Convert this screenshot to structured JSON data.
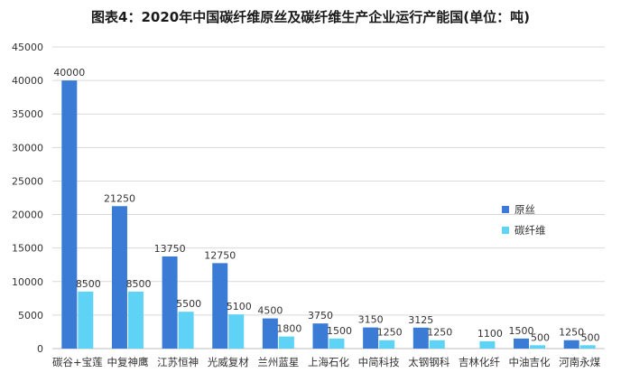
{
  "title": "图表4：2020年中国碳纤维原丝及碳纤维生产企业运行产能国(单位：吨)",
  "colors": {
    "precursor": "#3a7bd5",
    "fiber": "#5fd3f5",
    "grid": "#d9d9d9",
    "axis": "#bfbfbf"
  },
  "chart_data": {
    "type": "bar",
    "title": "图表4：2020年中国碳纤维原丝及碳纤维生产企业运行产能国(单位：吨)",
    "categories": [
      "碳谷+宝莲",
      "中复神鹰",
      "江苏恒神",
      "光威复材",
      "兰州蓝星",
      "上海石化",
      "中简科技",
      "太钢钢科",
      "吉林化纤",
      "中油吉化",
      "河南永煤"
    ],
    "series": [
      {
        "name": "原丝",
        "values": [
          40000,
          21250,
          13750,
          12750,
          4500,
          3750,
          3150,
          3125,
          0,
          1500,
          1250
        ],
        "labels": [
          "40000",
          "21250",
          "13750",
          "12750",
          "4500",
          "3750",
          "3150",
          "3125",
          "",
          "1500",
          "1250"
        ]
      },
      {
        "name": "碳纤维",
        "values": [
          8500,
          8500,
          5500,
          5100,
          1800,
          1500,
          1250,
          1250,
          1100,
          500,
          500
        ],
        "labels": [
          "8500",
          "8500",
          "5500",
          "5100",
          "1800",
          "1500",
          "1250",
          "1250",
          "1100",
          "500",
          "500"
        ]
      }
    ],
    "yticks": [
      "0",
      "5000",
      "10000",
      "15000",
      "20000",
      "25000",
      "30000",
      "35000",
      "40000",
      "45000"
    ],
    "ylim": [
      0,
      45000
    ],
    "xlabel": "",
    "ylabel": "",
    "grid": true,
    "legend": "right"
  }
}
